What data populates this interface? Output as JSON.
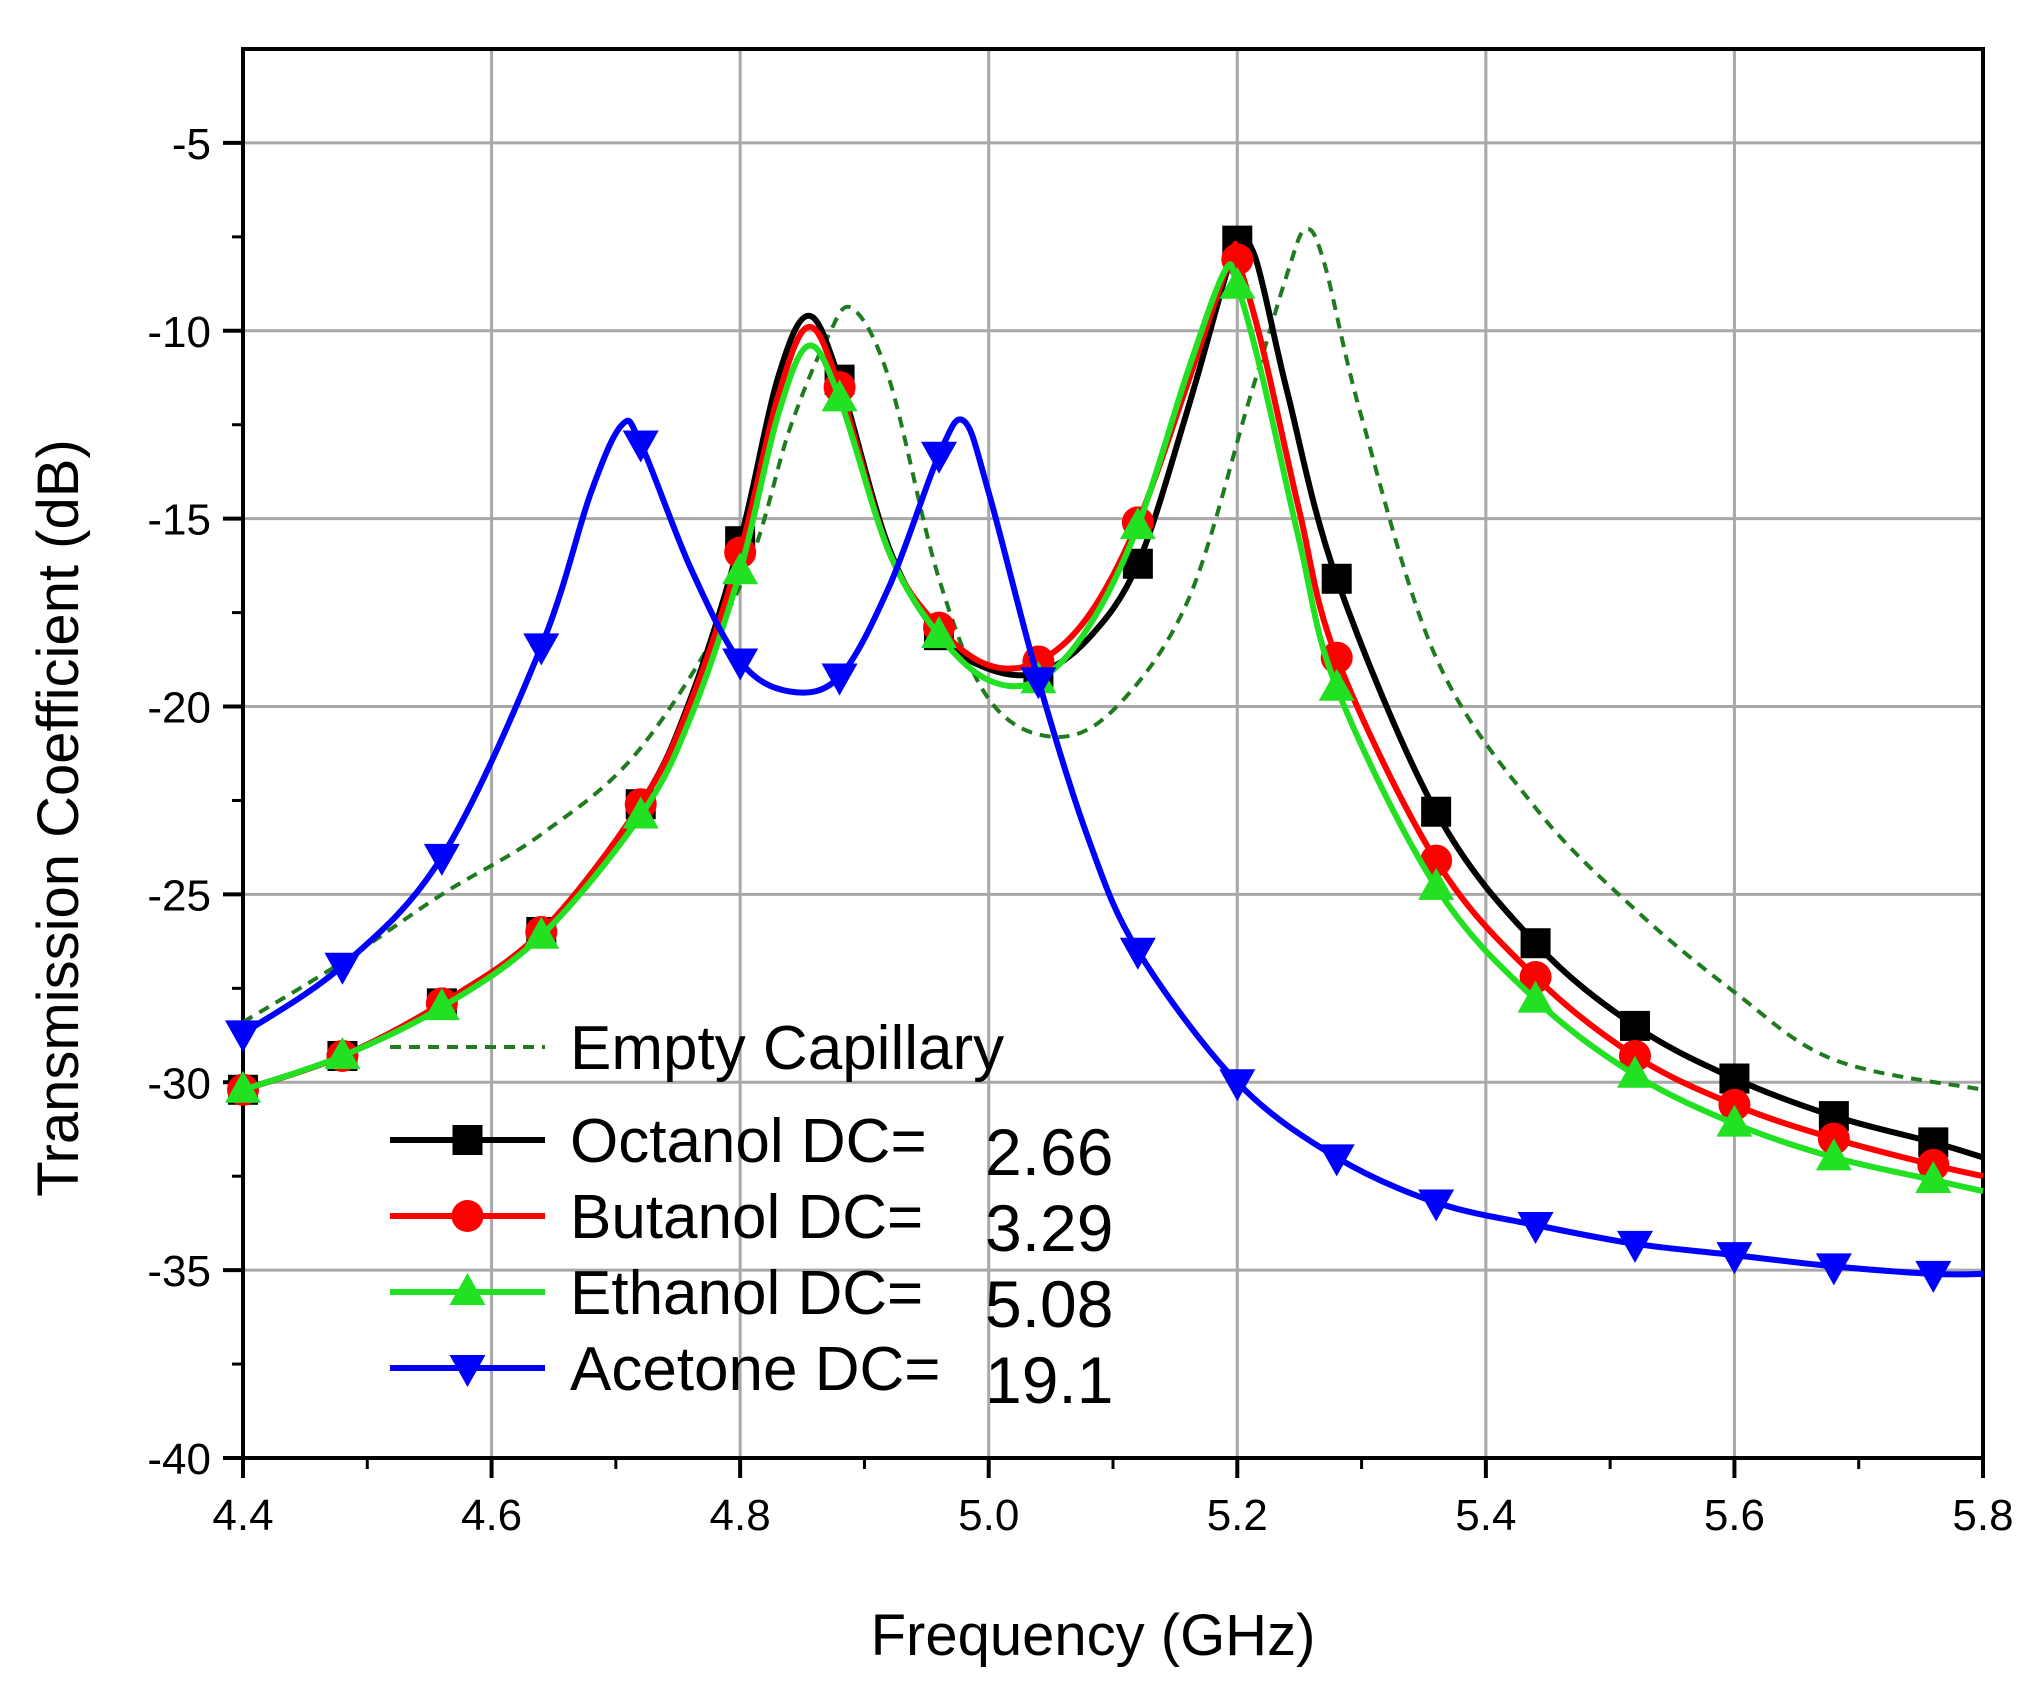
{
  "chart_data": {
    "type": "line",
    "title": "",
    "xlabel": "Frequency (GHz)",
    "ylabel": "Transmission Coefficient (dB)",
    "xlim": [
      4.4,
      5.8
    ],
    "ylim": [
      -40,
      -2.5
    ],
    "grid": true,
    "legend_position": "bottom-left",
    "xticks": [
      "4.4",
      "4.6",
      "4.8",
      "5.0",
      "5.2",
      "5.4",
      "5.6",
      "5.8"
    ],
    "yticks": [
      "-5",
      "-10",
      "-15",
      "-20",
      "-25",
      "-30",
      "-35",
      "-40"
    ],
    "series": [
      {
        "name": "Empty Capillary",
        "legend_label": "Empty Capillary",
        "legend_value": "",
        "color": "#1e7b1e",
        "dash": true,
        "marker": "none",
        "x": [
          4.4,
          4.48,
          4.56,
          4.64,
          4.72,
          4.8,
          4.84,
          4.87,
          4.89,
          4.92,
          4.96,
          5.0,
          5.05,
          5.1,
          5.16,
          5.21,
          5.24,
          5.255,
          5.27,
          5.3,
          5.36,
          5.44,
          5.52,
          5.6,
          5.68,
          5.8
        ],
        "y": [
          -28.4,
          -26.8,
          -25.0,
          -23.4,
          -21.1,
          -16.8,
          -12.6,
          -10.2,
          -9.4,
          -11.3,
          -16.6,
          -19.8,
          -20.8,
          -20.1,
          -17.2,
          -11.8,
          -8.5,
          -7.3,
          -8.2,
          -12.3,
          -18.7,
          -22.7,
          -25.4,
          -27.6,
          -29.4,
          -30.2
        ]
      },
      {
        "name": "Octanol",
        "legend_label": "Octanol DC=",
        "legend_value": "2.66",
        "color": "#000000",
        "dash": false,
        "marker": "square",
        "x": [
          4.4,
          4.48,
          4.56,
          4.64,
          4.72,
          4.76,
          4.8,
          4.83,
          4.855,
          4.88,
          4.92,
          4.96,
          5.0,
          5.04,
          5.08,
          5.12,
          5.16,
          5.19,
          5.2,
          5.215,
          5.24,
          5.28,
          5.36,
          5.44,
          5.52,
          5.6,
          5.68,
          5.76,
          5.8
        ],
        "y": [
          -30.2,
          -29.3,
          -27.9,
          -26.0,
          -22.6,
          -19.8,
          -15.6,
          -11.3,
          -9.6,
          -11.3,
          -15.8,
          -18.1,
          -19.0,
          -19.1,
          -18.2,
          -16.2,
          -12.1,
          -8.6,
          -7.6,
          -8.1,
          -11.6,
          -16.6,
          -22.8,
          -26.3,
          -28.5,
          -29.9,
          -30.9,
          -31.6,
          -32.0
        ]
      },
      {
        "name": "Butanol",
        "legend_label": "Butanol DC=",
        "legend_value": "3.29",
        "color": "#ff0000",
        "dash": false,
        "marker": "circle",
        "x": [
          4.4,
          4.48,
          4.56,
          4.64,
          4.72,
          4.76,
          4.8,
          4.83,
          4.855,
          4.88,
          4.92,
          4.96,
          5.0,
          5.04,
          5.08,
          5.12,
          5.16,
          5.195,
          5.2,
          5.22,
          5.25,
          5.28,
          5.36,
          5.44,
          5.52,
          5.6,
          5.68,
          5.76,
          5.8
        ],
        "y": [
          -30.2,
          -29.3,
          -27.9,
          -26.0,
          -22.6,
          -19.9,
          -15.9,
          -11.8,
          -9.9,
          -11.5,
          -15.9,
          -17.9,
          -18.9,
          -18.8,
          -17.6,
          -15.1,
          -11.4,
          -8.0,
          -8.1,
          -10.4,
          -14.8,
          -18.7,
          -24.1,
          -27.2,
          -29.3,
          -30.6,
          -31.5,
          -32.2,
          -32.5
        ]
      },
      {
        "name": "Ethanol",
        "legend_label": "Ethanol DC=",
        "legend_value": "5.08",
        "color": "#22e022",
        "dash": false,
        "marker": "triangle-up",
        "x": [
          4.4,
          4.48,
          4.56,
          4.64,
          4.72,
          4.76,
          4.8,
          4.83,
          4.855,
          4.88,
          4.92,
          4.96,
          5.0,
          5.04,
          5.08,
          5.12,
          5.16,
          5.19,
          5.2,
          5.22,
          5.25,
          5.28,
          5.36,
          5.44,
          5.52,
          5.6,
          5.68,
          5.76,
          5.8
        ],
        "y": [
          -30.2,
          -29.3,
          -28.0,
          -26.1,
          -22.9,
          -20.3,
          -16.4,
          -12.3,
          -10.4,
          -11.8,
          -15.9,
          -18.1,
          -19.3,
          -19.3,
          -17.9,
          -15.2,
          -11.1,
          -8.4,
          -8.8,
          -11.2,
          -15.6,
          -19.5,
          -24.8,
          -27.8,
          -29.8,
          -31.1,
          -32.0,
          -32.6,
          -32.9
        ]
      },
      {
        "name": "Acetone",
        "legend_label": "Acetone DC=",
        "legend_value": "19.1",
        "color": "#0000ff",
        "dash": false,
        "marker": "triangle-down",
        "x": [
          4.4,
          4.48,
          4.56,
          4.64,
          4.68,
          4.705,
          4.72,
          4.76,
          4.8,
          4.84,
          4.88,
          4.92,
          4.96,
          4.98,
          5.0,
          5.04,
          5.08,
          5.12,
          5.2,
          5.28,
          5.36,
          5.44,
          5.52,
          5.6,
          5.68,
          5.76,
          5.8
        ],
        "y": [
          -28.7,
          -26.9,
          -24.0,
          -18.4,
          -14.3,
          -12.5,
          -13.0,
          -16.3,
          -18.8,
          -19.6,
          -19.2,
          -16.8,
          -13.3,
          -12.4,
          -14.3,
          -19.3,
          -23.5,
          -26.5,
          -30.0,
          -32.0,
          -33.2,
          -33.8,
          -34.3,
          -34.6,
          -34.9,
          -35.1,
          -35.1
        ]
      }
    ]
  }
}
